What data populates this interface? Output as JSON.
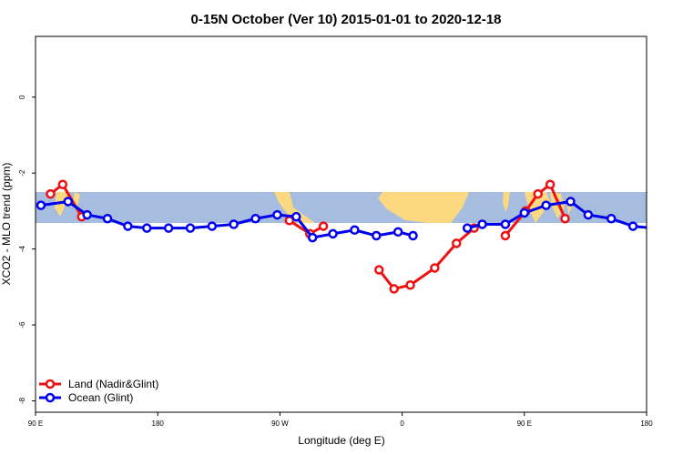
{
  "chart_data": {
    "type": "line",
    "title": "0-15N October (Ver 10)   2015-01-01 to 2020-12-18",
    "xlabel": "Longitude (deg E)",
    "ylabel": "XCO2 - MLO trend (ppm)",
    "xlim": [
      90,
      540
    ],
    "ylim": [
      -8.3,
      1.6
    ],
    "xticks": [
      90,
      180,
      270,
      360,
      450,
      540
    ],
    "xtick_labels": [
      "90 E",
      "180",
      "90 W",
      "0",
      "90 E",
      "180"
    ],
    "yticks": [
      0,
      -2,
      -4,
      -6,
      -8
    ],
    "ytick_labels": [
      "0",
      "-2",
      "-4",
      "-6",
      "-8"
    ],
    "map_band": {
      "lat_range": [
        0,
        15
      ],
      "y_range": [
        -2.6,
        -3.4
      ],
      "ocean_color": "#a7bde0",
      "land_color": "#fcd981"
    },
    "legend_position": "bottom-left",
    "series": [
      {
        "name": "Land (Nadir&Glint)",
        "color": "#ee1111",
        "segments": [
          [
            [
              101,
              -2.55
            ],
            [
              110,
              -2.3
            ],
            [
              124,
              -3.15
            ]
          ],
          [
            [
              277,
              -3.25
            ],
            [
              292,
              -3.6
            ],
            [
              302,
              -3.4
            ]
          ],
          [
            [
              343,
              -4.55
            ],
            [
              354,
              -5.05
            ],
            [
              366,
              -4.95
            ],
            [
              384,
              -4.5
            ],
            [
              400,
              -3.85
            ],
            [
              413,
              -3.45
            ]
          ],
          [
            [
              436,
              -3.65
            ],
            [
              451,
              -3.0
            ],
            [
              460,
              -2.55
            ],
            [
              469,
              -2.3
            ],
            [
              480,
              -3.2
            ]
          ]
        ]
      },
      {
        "name": "Ocean (Glint)",
        "color": "#0000ee",
        "segments": [
          [
            [
              94,
              -2.85
            ],
            [
              114,
              -2.75
            ],
            [
              128,
              -3.1
            ],
            [
              143,
              -3.2
            ],
            [
              158,
              -3.4
            ],
            [
              172,
              -3.45
            ],
            [
              188,
              -3.45
            ],
            [
              204,
              -3.45
            ],
            [
              220,
              -3.4
            ],
            [
              236,
              -3.35
            ],
            [
              252,
              -3.2
            ],
            [
              268,
              -3.1
            ],
            [
              282,
              -3.15
            ],
            [
              294,
              -3.7
            ],
            [
              309,
              -3.6
            ],
            [
              325,
              -3.5
            ],
            [
              341,
              -3.65
            ],
            [
              357,
              -3.55
            ],
            [
              368,
              -3.65
            ]
          ],
          [
            [
              408,
              -3.45
            ],
            [
              419,
              -3.35
            ],
            [
              436,
              -3.35
            ],
            [
              450,
              -3.05
            ],
            [
              466,
              -2.85
            ],
            [
              484,
              -2.75
            ],
            [
              497,
              -3.1
            ],
            [
              514,
              -3.2
            ],
            [
              530,
              -3.4
            ],
            [
              545,
              -3.45
            ]
          ]
        ]
      }
    ]
  }
}
